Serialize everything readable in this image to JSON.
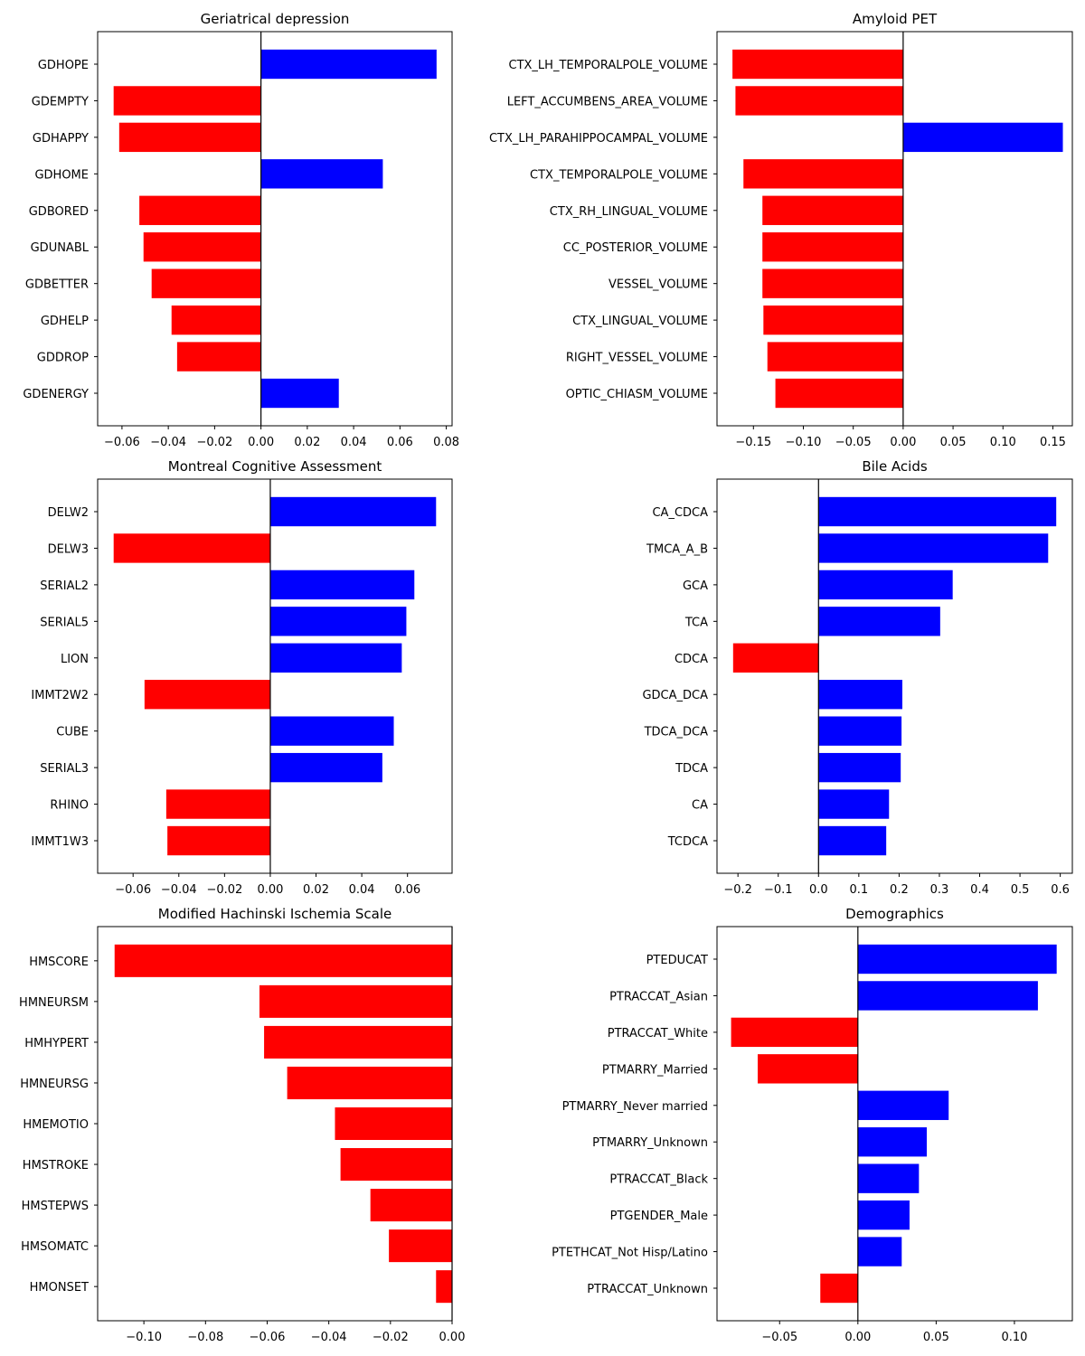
{
  "colors": {
    "positive": "#0000ff",
    "negative": "#ff0000",
    "axis": "#000000",
    "background": "#ffffff"
  },
  "chart_data": [
    {
      "type": "bar",
      "orientation": "horizontal",
      "title": "Geriatrical depression",
      "categories": [
        "GDHOPE",
        "GDEMPTY",
        "GDHAPPY",
        "GDHOME",
        "GDBORED",
        "GDUNABL",
        "GDBETTER",
        "GDHELP",
        "GDDROP",
        "GDENERGY"
      ],
      "values": [
        0.0758,
        -0.0636,
        -0.0612,
        0.0526,
        -0.0525,
        -0.0507,
        -0.0472,
        -0.0386,
        -0.0362,
        0.0336
      ],
      "xlim": [
        -0.0705,
        0.0825
      ],
      "xticks": [
        -0.06,
        -0.04,
        -0.02,
        0.0,
        0.02,
        0.04,
        0.06,
        0.08
      ],
      "xtick_labels": [
        "−0.06",
        "−0.04",
        "−0.02",
        "0.00",
        "0.02",
        "0.04",
        "0.06",
        "0.08"
      ]
    },
    {
      "type": "bar",
      "orientation": "horizontal",
      "title": "Amyloid PET",
      "categories": [
        "CTX_LH_TEMPORALPOLE_VOLUME",
        "LEFT_ACCUMBENS_AREA_VOLUME",
        "CTX_LH_PARAHIPPOCAMPAL_VOLUME",
        "CTX_TEMPORALPOLE_VOLUME",
        "CTX_RH_LINGUAL_VOLUME",
        "CC_POSTERIOR_VOLUME",
        "VESSEL_VOLUME",
        "CTX_LINGUAL_VOLUME",
        "RIGHT_VESSEL_VOLUME",
        "OPTIC_CHIASM_VOLUME"
      ],
      "values": [
        -0.171,
        -0.168,
        0.16,
        -0.16,
        -0.141,
        -0.141,
        -0.141,
        -0.14,
        -0.136,
        -0.128
      ],
      "xlim": [
        -0.1865,
        0.1695
      ],
      "xticks": [
        -0.15,
        -0.1,
        -0.05,
        0.0,
        0.05,
        0.1,
        0.15
      ],
      "xtick_labels": [
        "−0.15",
        "−0.10",
        "−0.05",
        "0.00",
        "0.05",
        "0.10",
        "0.15"
      ]
    },
    {
      "type": "bar",
      "orientation": "horizontal",
      "title": "Montreal Cognitive Assessment",
      "categories": [
        "DELW2",
        "DELW3",
        "SERIAL2",
        "SERIAL5",
        "LION",
        "IMMT2W2",
        "CUBE",
        "SERIAL3",
        "RHINO",
        "IMMT1W3"
      ],
      "values": [
        0.0725,
        -0.0685,
        0.063,
        0.0595,
        0.0575,
        -0.055,
        0.054,
        0.049,
        -0.0455,
        -0.045
      ],
      "xlim": [
        -0.0755,
        0.0795
      ],
      "xticks": [
        -0.06,
        -0.04,
        -0.02,
        0.0,
        0.02,
        0.04,
        0.06
      ],
      "xtick_labels": [
        "−0.06",
        "−0.04",
        "−0.02",
        "0.00",
        "0.02",
        "0.04",
        "0.06"
      ]
    },
    {
      "type": "bar",
      "orientation": "horizontal",
      "title": "Bile Acids",
      "categories": [
        "CA_CDCA",
        "TMCA_A_B",
        "GCA",
        "TCA",
        "CDCA",
        "GDCA_DCA",
        "TDCA_DCA",
        "TDCA",
        "CA",
        "TCDCA"
      ],
      "values": [
        0.59,
        0.57,
        0.333,
        0.302,
        -0.212,
        0.208,
        0.206,
        0.204,
        0.175,
        0.168
      ],
      "xlim": [
        -0.252,
        0.63
      ],
      "xticks": [
        -0.2,
        -0.1,
        0.0,
        0.1,
        0.2,
        0.3,
        0.4,
        0.5,
        0.6
      ],
      "xtick_labels": [
        "−0.2",
        "−0.1",
        "0.0",
        "0.1",
        "0.2",
        "0.3",
        "0.4",
        "0.5",
        "0.6"
      ]
    },
    {
      "type": "bar",
      "orientation": "horizontal",
      "title": "Modified Hachinski Ischemia Scale",
      "categories": [
        "HMSCORE",
        "HMNEURSM",
        "HMHYPERT",
        "HMNEURSG",
        "HMEMOTIO",
        "HMSTROKE",
        "HMSTEPWS",
        "HMSOMATC",
        "HMONSET"
      ],
      "values": [
        -0.1095,
        -0.0625,
        -0.061,
        -0.0535,
        -0.038,
        -0.0362,
        -0.0265,
        -0.0205,
        -0.0052
      ],
      "xlim": [
        -0.115,
        0.0
      ],
      "xticks": [
        -0.1,
        -0.08,
        -0.06,
        -0.04,
        -0.02,
        0.0
      ],
      "xtick_labels": [
        "−0.10",
        "−0.08",
        "−0.06",
        "−0.04",
        "−0.02",
        "0.00"
      ]
    },
    {
      "type": "bar",
      "orientation": "horizontal",
      "title": "Demographics",
      "categories": [
        "PTEDUCAT",
        "PTRACCAT_Asian",
        "PTRACCAT_White",
        "PTMARRY_Married",
        "PTMARRY_Never married",
        "PTMARRY_Unknown",
        "PTRACCAT_Black",
        "PTGENDER_Male",
        "PTETHCAT_Not Hisp/Latino",
        "PTRACCAT_Unknown"
      ],
      "values": [
        0.127,
        0.115,
        -0.081,
        -0.064,
        0.058,
        0.044,
        0.039,
        0.033,
        0.028,
        -0.024
      ],
      "xlim": [
        -0.09,
        0.137
      ],
      "xticks": [
        -0.05,
        0.0,
        0.05,
        0.1
      ],
      "xtick_labels": [
        "−0.05",
        "0.00",
        "0.05",
        "0.10"
      ]
    }
  ]
}
